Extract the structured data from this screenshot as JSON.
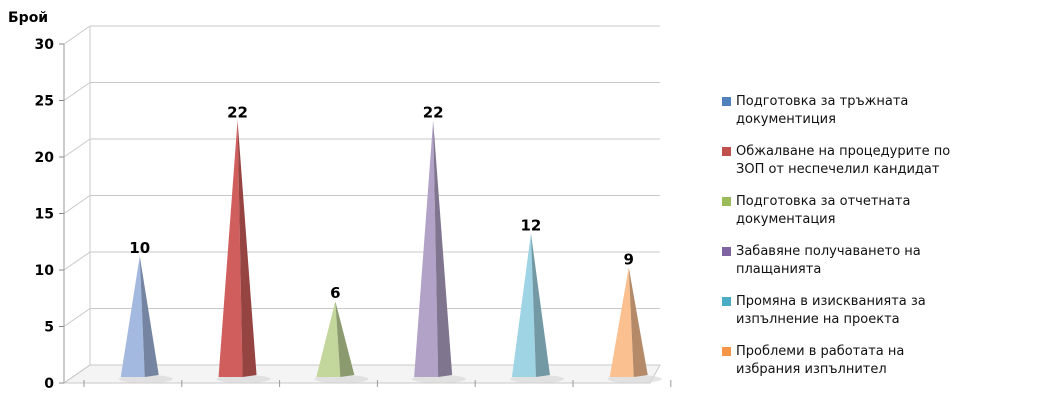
{
  "chart_data": {
    "type": "bar",
    "bar_shape": "pyramid-3d",
    "ylabel": "Брой",
    "ylim": [
      0,
      30
    ],
    "yticks": [
      "0",
      "5",
      "10",
      "15",
      "20",
      "25",
      "30"
    ],
    "grid": true,
    "legend_position": "right",
    "series": [
      {
        "name": "Подготовка за тръжната документиция",
        "legend_lines": [
          "Подготовка за тръжната",
          "документиция"
        ],
        "value": 10,
        "label": "10",
        "color": "#a3b9df",
        "legend_color": "#4f81bd"
      },
      {
        "name": "Обжалване на процедурите по ЗОП от неспечелил кандидат",
        "legend_lines": [
          "Обжалване на процедурите по",
          "ЗОП от неспечелил кандидат"
        ],
        "value": 22,
        "label": "22",
        "color": "#d05e5c",
        "legend_color": "#c0504d"
      },
      {
        "name": "Подготовка за отчетната документация",
        "legend_lines": [
          "Подготовка за отчетната",
          "документация"
        ],
        "value": 6,
        "label": "6",
        "color": "#c3d69b",
        "legend_color": "#9bbb59"
      },
      {
        "name": "Забавяне получаването на плащанията",
        "legend_lines": [
          "Забавяне получаването на",
          "плащанията"
        ],
        "value": 22,
        "label": "22",
        "color": "#b2a2c7",
        "legend_color": "#8064a2"
      },
      {
        "name": "Промяна в изискванията за изпълнение на проекта",
        "legend_lines": [
          "Промяна в изискванията за",
          "изпълнение на проекта"
        ],
        "value": 12,
        "label": "12",
        "color": "#9fd4e4",
        "legend_color": "#4bacc6"
      },
      {
        "name": "Проблеми в работата на избрания изпълнител",
        "legend_lines": [
          "Проблеми в работата на",
          "избрания изпълнител"
        ],
        "value": 9,
        "label": "9",
        "color": "#fac090",
        "legend_color": "#f79646"
      }
    ]
  }
}
